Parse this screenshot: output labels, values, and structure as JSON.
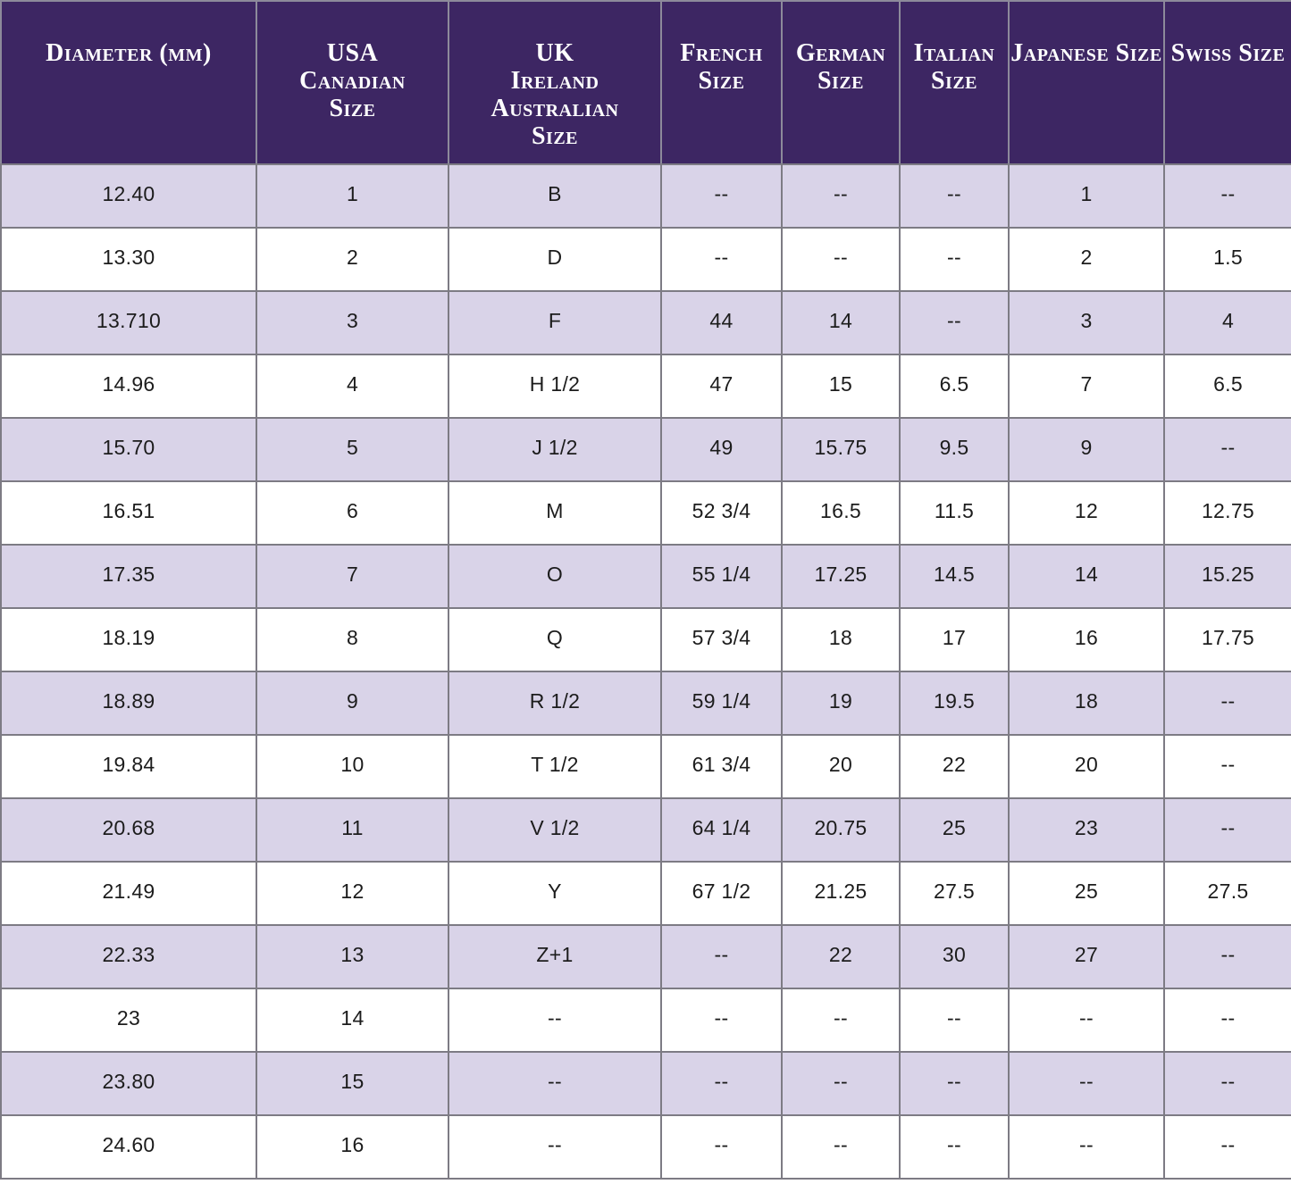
{
  "chart_data": {
    "type": "table",
    "columns": [
      "Diameter (mm)",
      "USA\nCanadian\nSize",
      "UK\nIreland\nAustralian\nSize",
      "French\nSize",
      "German\nSize",
      "Italian\nSize",
      "Japanese Size",
      "Swiss Size"
    ],
    "column_keys": [
      "diameter-mm",
      "usa-canadian-size",
      "uk-ireland-australian-size",
      "french-size",
      "german-size",
      "italian-size",
      "japanese-size",
      "swiss-size"
    ],
    "rows": [
      [
        "12.40",
        "1",
        "B",
        "--",
        "--",
        "--",
        "1",
        "--"
      ],
      [
        "13.30",
        "2",
        "D",
        "--",
        "--",
        "--",
        "2",
        "1.5"
      ],
      [
        "13.710",
        "3",
        "F",
        "44",
        "14",
        "--",
        "3",
        "4"
      ],
      [
        "14.96",
        "4",
        "H 1/2",
        "47",
        "15",
        "6.5",
        "7",
        "6.5"
      ],
      [
        "15.70",
        "5",
        "J 1/2",
        "49",
        "15.75",
        "9.5",
        "9",
        "--"
      ],
      [
        "16.51",
        "6",
        "M",
        "52 3/4",
        "16.5",
        "11.5",
        "12",
        "12.75"
      ],
      [
        "17.35",
        "7",
        "O",
        "55 1/4",
        "17.25",
        "14.5",
        "14",
        "15.25"
      ],
      [
        "18.19",
        "8",
        "Q",
        "57 3/4",
        "18",
        "17",
        "16",
        "17.75"
      ],
      [
        "18.89",
        "9",
        "R 1/2",
        "59 1/4",
        "19",
        "19.5",
        "18",
        "--"
      ],
      [
        "19.84",
        "10",
        "T 1/2",
        "61 3/4",
        "20",
        "22",
        "20",
        "--"
      ],
      [
        "20.68",
        "11",
        "V 1/2",
        "64 1/4",
        "20.75",
        "25",
        "23",
        "--"
      ],
      [
        "21.49",
        "12",
        "Y",
        "67 1/2",
        "21.25",
        "27.5",
        "25",
        "27.5"
      ],
      [
        "22.33",
        "13",
        "Z+1",
        "--",
        "22",
        "30",
        "27",
        "--"
      ],
      [
        "23",
        "14",
        "--",
        "--",
        "--",
        "--",
        "--",
        "--"
      ],
      [
        "23.80",
        "15",
        "--",
        "--",
        "--",
        "--",
        "--",
        "--"
      ],
      [
        "24.60",
        "16",
        "--",
        "--",
        "--",
        "--",
        "--",
        "--"
      ]
    ]
  },
  "colors": {
    "header_bg": "#3d2663",
    "header_text": "#ffffff",
    "row_alt_bg": "#d9d3e8",
    "row_bg": "#ffffff",
    "grid_line": "#7d7b84",
    "body_text": "#1c1c1c"
  }
}
